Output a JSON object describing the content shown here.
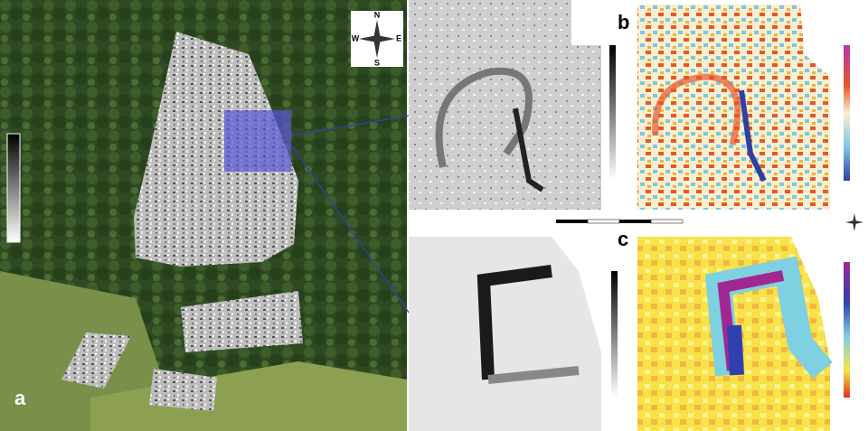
{
  "panels": [
    {
      "label": "a"
    },
    {
      "label": "b"
    },
    {
      "label": "c"
    }
  ],
  "compass": {
    "north": "N",
    "west": "W",
    "east": "E",
    "south": "S"
  }
}
